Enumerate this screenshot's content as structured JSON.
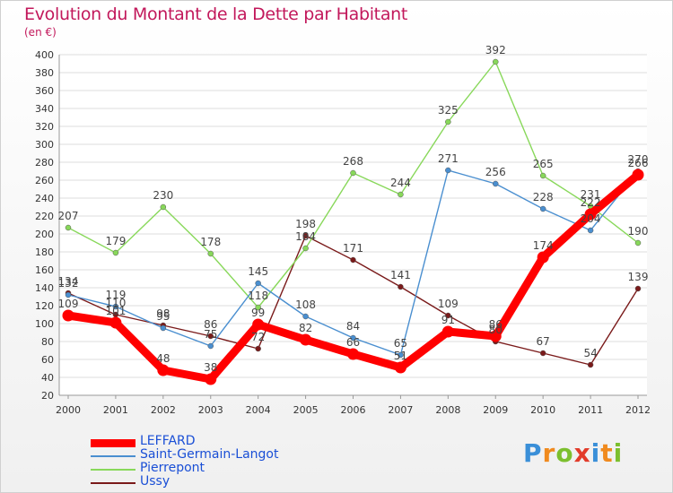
{
  "title": "Evolution du Montant de la Dette par Habitant",
  "unit": "(en €)",
  "logo": "Proxiti",
  "chart_data": {
    "type": "line",
    "x": [
      "2000",
      "2001",
      "2002",
      "2003",
      "2004",
      "2005",
      "2006",
      "2007",
      "2008",
      "2009",
      "2010",
      "2011",
      "2012"
    ],
    "ylim": [
      20,
      400
    ],
    "yticks": [
      20,
      40,
      60,
      80,
      100,
      120,
      140,
      160,
      180,
      200,
      220,
      240,
      260,
      280,
      300,
      320,
      340,
      360,
      380,
      400
    ],
    "grid": "horizontal",
    "legend_position": "bottom-left",
    "series": [
      {
        "name": "LEFFARD",
        "color": "#ff0000",
        "values": [
          109,
          101,
          48,
          38,
          99,
          82,
          66,
          51,
          91,
          86,
          174,
          222,
          266
        ],
        "labels": [
          "109",
          "101",
          "48",
          "38",
          "99",
          "82",
          "66",
          "51",
          "91",
          "86",
          "174",
          "222",
          "266"
        ]
      },
      {
        "name": "Saint-Germain-Langot",
        "color": "#4a8fd0",
        "values": [
          132,
          119,
          95,
          75,
          145,
          108,
          84,
          65,
          271,
          256,
          228,
          204,
          270
        ],
        "labels": [
          "132",
          "119",
          "95",
          "75",
          "145",
          "108",
          "84",
          "65",
          "271",
          "256",
          "228",
          "204",
          "270"
        ]
      },
      {
        "name": "Pierrepont",
        "color": "#88d85a",
        "values": [
          207,
          179,
          230,
          178,
          118,
          184,
          268,
          244,
          325,
          392,
          265,
          231,
          190
        ],
        "labels": [
          "207",
          "179",
          "230",
          "178",
          "118",
          "184",
          "268",
          "244",
          "325",
          "392",
          "265",
          "231",
          "190"
        ]
      },
      {
        "name": "Ussy",
        "color": "#7a1a1a",
        "values": [
          134,
          110,
          98,
          86,
          72,
          198,
          171,
          141,
          109,
          80,
          67,
          54,
          139
        ],
        "labels": [
          "134",
          "110",
          "98",
          "86",
          "72",
          "198",
          "171",
          "141",
          "109",
          "80",
          "67",
          "54",
          "139"
        ]
      }
    ]
  }
}
